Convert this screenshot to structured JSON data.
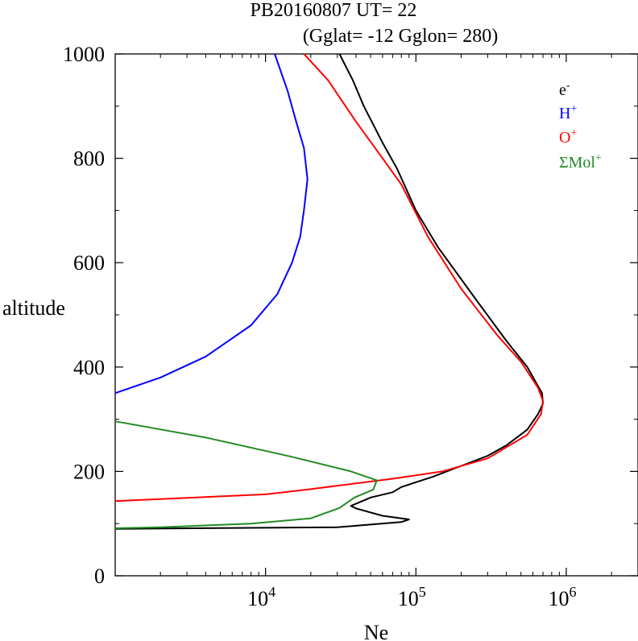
{
  "chart_data": {
    "type": "line",
    "title_line1": "PB20160807   UT=  22",
    "title_line2": "(Gglat= -12   Gglon=  280)",
    "xlabel": "Ne",
    "ylabel": "altitude",
    "x_scale": "log",
    "xlim": [
      1000,
      3000000
    ],
    "ylim": [
      0,
      1000
    ],
    "x_major_ticks": [
      {
        "value": 10000,
        "base": "10",
        "exp": "4"
      },
      {
        "value": 100000,
        "base": "10",
        "exp": "5"
      },
      {
        "value": 1000000,
        "base": "10",
        "exp": "6"
      }
    ],
    "y_ticks": [
      "0",
      "200",
      "400",
      "600",
      "800",
      "1000"
    ],
    "y_tick_values": [
      0,
      200,
      400,
      600,
      800,
      1000
    ],
    "legend_position": "top-right",
    "series": [
      {
        "name": "e-",
        "label_base": "e",
        "label_sup": "-",
        "color": "#000000",
        "points": [
          [
            1000,
            90
          ],
          [
            30000,
            93
          ],
          [
            80000,
            103
          ],
          [
            90000,
            108
          ],
          [
            60000,
            115
          ],
          [
            40000,
            129
          ],
          [
            37000,
            134
          ],
          [
            50000,
            150
          ],
          [
            70000,
            160
          ],
          [
            80000,
            170
          ],
          [
            130000,
            190
          ],
          [
            300000,
            230
          ],
          [
            400000,
            250
          ],
          [
            550000,
            280
          ],
          [
            650000,
            310
          ],
          [
            700000,
            330
          ],
          [
            690000,
            350
          ],
          [
            630000,
            370
          ],
          [
            550000,
            400
          ],
          [
            400000,
            450
          ],
          [
            250000,
            530
          ],
          [
            140000,
            630
          ],
          [
            100000,
            700
          ],
          [
            75000,
            780
          ],
          [
            60000,
            830
          ],
          [
            45000,
            900
          ],
          [
            38000,
            950
          ],
          [
            31000,
            1000
          ]
        ]
      },
      {
        "name": "H+",
        "label_base": "H",
        "label_sup": "+",
        "color": "#0000ff",
        "points": [
          [
            1000,
            350
          ],
          [
            2000,
            380
          ],
          [
            4000,
            420
          ],
          [
            8000,
            480
          ],
          [
            12000,
            540
          ],
          [
            15000,
            600
          ],
          [
            17000,
            650
          ],
          [
            18000,
            700
          ],
          [
            19000,
            760
          ],
          [
            18000,
            820
          ],
          [
            16000,
            870
          ],
          [
            14000,
            930
          ],
          [
            11500,
            1000
          ]
        ]
      },
      {
        "name": "O+",
        "label_base": "O",
        "label_sup": "+",
        "color": "#ff0000",
        "points": [
          [
            1000,
            143
          ],
          [
            10000,
            156
          ],
          [
            20000,
            166
          ],
          [
            40000,
            177
          ],
          [
            70000,
            186
          ],
          [
            150000,
            200
          ],
          [
            300000,
            225
          ],
          [
            550000,
            270
          ],
          [
            680000,
            310
          ],
          [
            700000,
            335
          ],
          [
            650000,
            360
          ],
          [
            500000,
            410
          ],
          [
            350000,
            460
          ],
          [
            200000,
            550
          ],
          [
            120000,
            650
          ],
          [
            80000,
            750
          ],
          [
            60000,
            800
          ],
          [
            40000,
            870
          ],
          [
            26000,
            950
          ],
          [
            18000,
            1000
          ]
        ]
      },
      {
        "name": "ΣMol+",
        "label_base": "ΣMol",
        "label_sup": "+",
        "color": "#228b22",
        "points": [
          [
            1000,
            296
          ],
          [
            4000,
            265
          ],
          [
            15000,
            228
          ],
          [
            37000,
            200
          ],
          [
            55000,
            183
          ],
          [
            52000,
            165
          ],
          [
            39000,
            150
          ],
          [
            31000,
            130
          ],
          [
            20000,
            110
          ],
          [
            8000,
            100
          ],
          [
            2000,
            93
          ],
          [
            1000,
            91
          ]
        ]
      }
    ]
  }
}
